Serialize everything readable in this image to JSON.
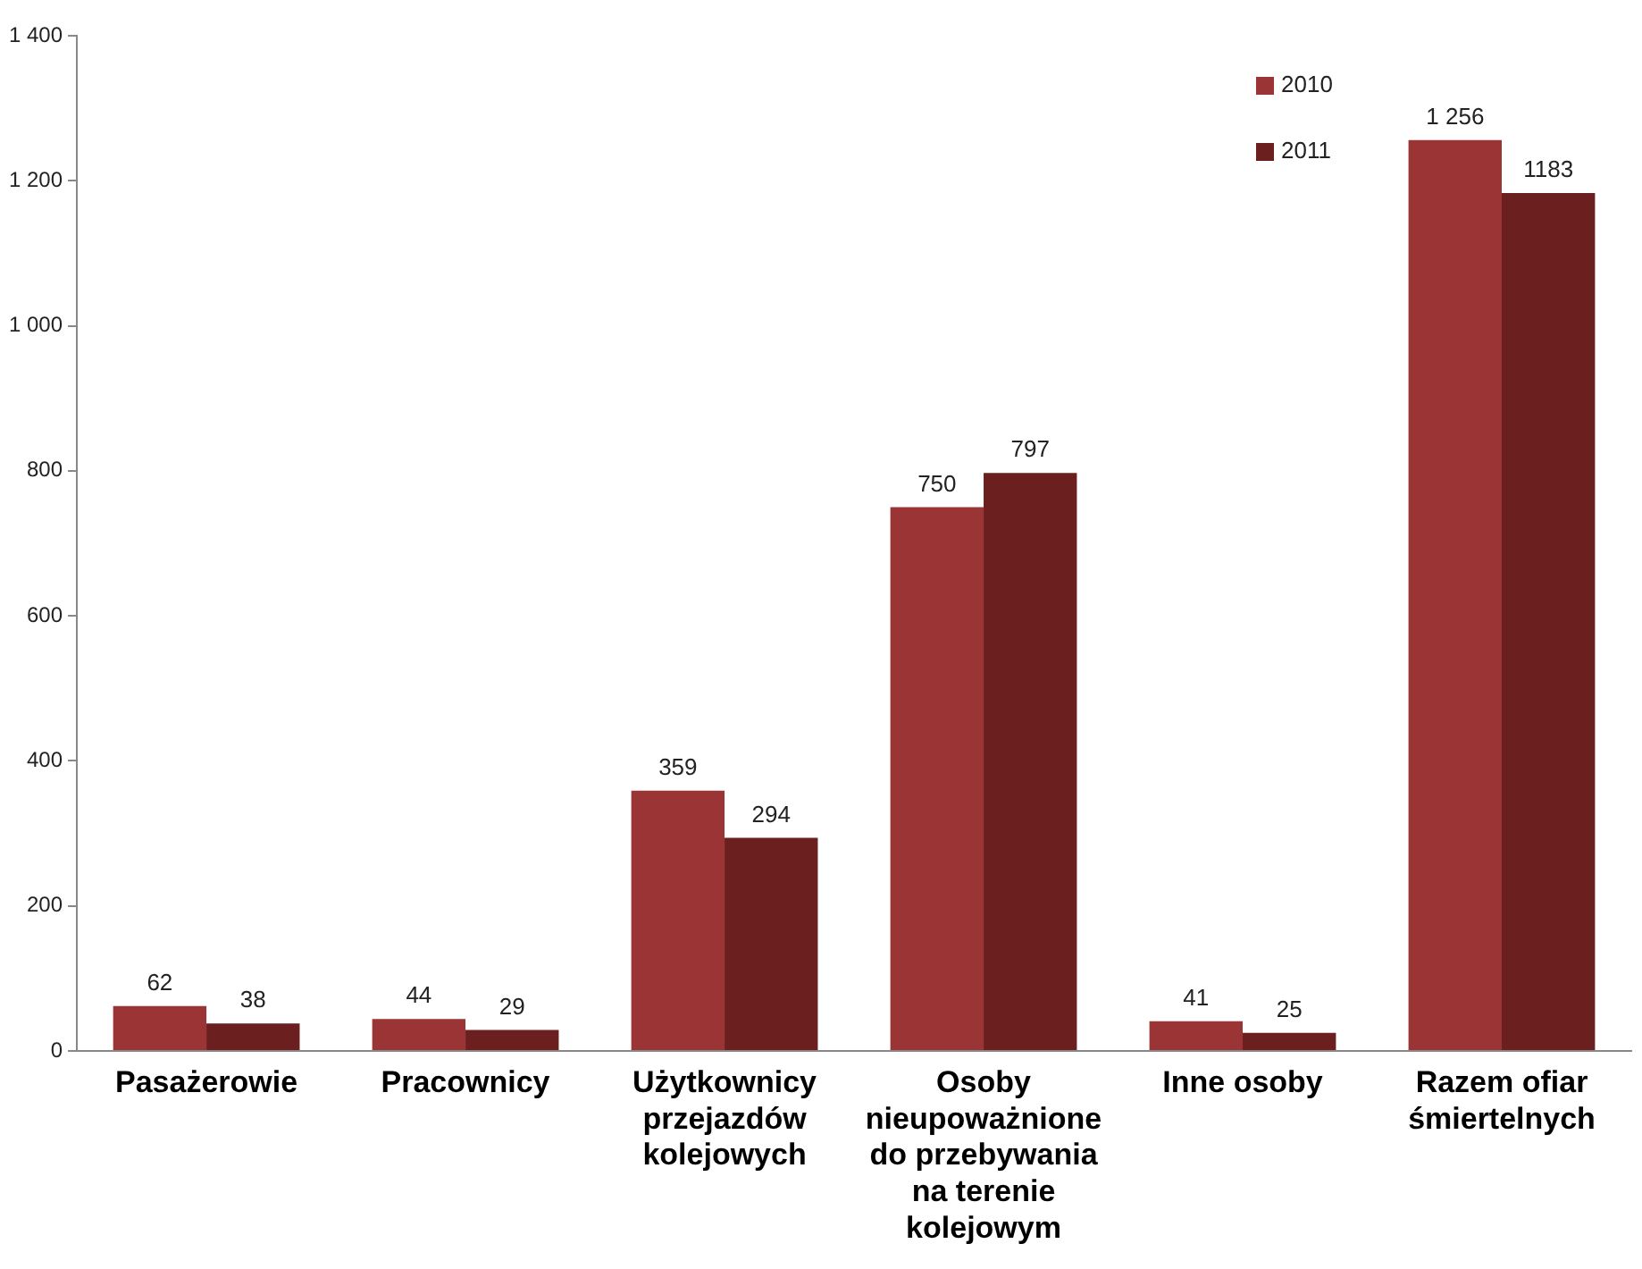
{
  "chart_data": {
    "type": "bar",
    "categories": [
      "Pasażerowie",
      "Pracownicy",
      "Użytkownicy przejazdów kolejowych",
      "Osoby nieupoważnione do przebywania na terenie kolejowym",
      "Inne osoby",
      "Razem ofiar śmiertelnych"
    ],
    "series": [
      {
        "name": "2010",
        "color": "#9b3535",
        "values": [
          62,
          44,
          359,
          750,
          41,
          1256
        ],
        "value_labels": [
          "62",
          "44",
          "359",
          "750",
          "41",
          "1 256"
        ]
      },
      {
        "name": "2011",
        "color": "#6b1f1f",
        "values": [
          38,
          29,
          294,
          797,
          25,
          1183
        ],
        "value_labels": [
          "38",
          "29",
          "294",
          "797",
          "25",
          "1183"
        ]
      }
    ],
    "ylim": [
      0,
      1400
    ],
    "yticks": [
      0,
      200,
      400,
      600,
      800,
      {
        "value": 1000,
        "label": "1 000"
      },
      {
        "value": 1200,
        "label": "1 200"
      },
      {
        "value": 1400,
        "label": "1 400"
      }
    ],
    "grid": false,
    "legend": "top right"
  }
}
